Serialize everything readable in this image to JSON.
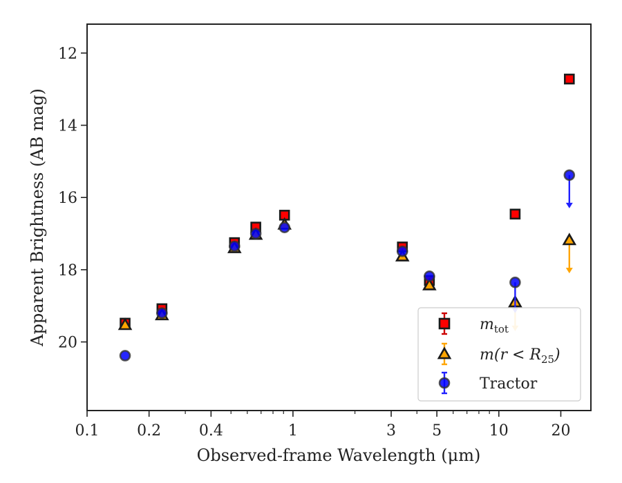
{
  "chart_data": {
    "type": "scatter",
    "xlabel": "Observed-frame Wavelength (μm)",
    "ylabel": "Apparent Brightness (AB mag)",
    "x_scale": "log",
    "xlim": [
      0.1,
      28
    ],
    "ylim": [
      21.9,
      11.2
    ],
    "y_inverted": true,
    "x_ticks": [
      {
        "value": 0.1,
        "label": "0.1"
      },
      {
        "value": 0.2,
        "label": "0.2"
      },
      {
        "value": 0.4,
        "label": "0.4"
      },
      {
        "value": 1,
        "label": "1"
      },
      {
        "value": 3,
        "label": "3"
      },
      {
        "value": 5,
        "label": "5"
      },
      {
        "value": 10,
        "label": "10"
      },
      {
        "value": 20,
        "label": "20"
      }
    ],
    "y_ticks": [
      {
        "value": 12,
        "label": "12"
      },
      {
        "value": 14,
        "label": "14"
      },
      {
        "value": 16,
        "label": "16"
      },
      {
        "value": 18,
        "label": "18"
      },
      {
        "value": 20,
        "label": "20"
      }
    ],
    "grid": false,
    "legend_position": "bottom-right",
    "series": [
      {
        "name": "m_tot",
        "marker": "square",
        "color": "#ff0000",
        "edge_color": "#1a1a1a",
        "error_color": "#cc0000",
        "points": [
          {
            "x": 0.153,
            "y": 19.48
          },
          {
            "x": 0.231,
            "y": 19.08
          },
          {
            "x": 0.52,
            "y": 17.25
          },
          {
            "x": 0.66,
            "y": 16.82
          },
          {
            "x": 0.91,
            "y": 16.49
          },
          {
            "x": 3.4,
            "y": 17.37
          },
          {
            "x": 4.6,
            "y": 18.3
          },
          {
            "x": 12.0,
            "y": 16.46
          },
          {
            "x": 22.0,
            "y": 12.72
          }
        ]
      },
      {
        "name": "m(r < R25)",
        "marker": "triangle",
        "color": "#ffa500",
        "edge_color": "#1a1a1a",
        "error_color": "#ffa500",
        "points": [
          {
            "x": 0.153,
            "y": 19.53
          },
          {
            "x": 0.231,
            "y": 19.26
          },
          {
            "x": 0.52,
            "y": 17.4
          },
          {
            "x": 0.66,
            "y": 17.03
          },
          {
            "x": 0.91,
            "y": 16.75
          },
          {
            "x": 3.4,
            "y": 17.63
          },
          {
            "x": 4.6,
            "y": 18.43
          },
          {
            "x": 12.0,
            "y": 18.9,
            "upper_limit_to": 19.7
          },
          {
            "x": 22.0,
            "y": 17.18,
            "upper_limit_to": 18.1
          }
        ]
      },
      {
        "name": "Tractor",
        "marker": "circle",
        "color": "#0000ff",
        "edge_color": "#333333",
        "error_color": "#2020ff",
        "points": [
          {
            "x": 0.153,
            "y": 20.38
          },
          {
            "x": 0.231,
            "y": 19.2
          },
          {
            "x": 0.52,
            "y": 17.35
          },
          {
            "x": 0.66,
            "y": 17.0
          },
          {
            "x": 0.91,
            "y": 16.83
          },
          {
            "x": 3.4,
            "y": 17.49
          },
          {
            "x": 4.6,
            "y": 18.18
          },
          {
            "x": 12.0,
            "y": 18.35,
            "upper_limit_to": 19.2
          },
          {
            "x": 22.0,
            "y": 15.38,
            "upper_limit_to": 16.3
          }
        ]
      }
    ],
    "legend": [
      {
        "series": "m_tot",
        "label_main": "m",
        "label_sub": "tot"
      },
      {
        "series": "m(r < R25)",
        "label_main": "m(r < R",
        "label_sub": "25",
        "label_end": ")"
      },
      {
        "series": "Tractor",
        "label_main": "Tractor"
      }
    ]
  }
}
